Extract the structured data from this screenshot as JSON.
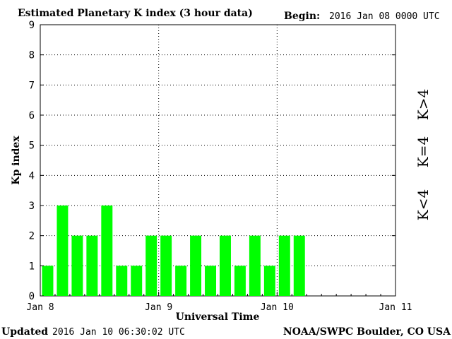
{
  "header": {
    "title": "Estimated Planetary K index (3 hour data)",
    "begin_label": "Begin:",
    "begin_value": "2016 Jan 08 0000 UTC"
  },
  "footer": {
    "updated_label": "Updated",
    "updated_value": "2016 Jan 10 06:30:02 UTC",
    "credit": "NOAA/SWPC Boulder, CO USA"
  },
  "legend": {
    "items": [
      {
        "label": "K<4",
        "color": "#33ff33"
      },
      {
        "label": "K=4",
        "color": "#ffcc00"
      },
      {
        "label": "K>4",
        "color": "#ff3311"
      }
    ]
  },
  "chart_data": {
    "type": "bar",
    "title": "Estimated Planetary K index (3 hour data)",
    "xlabel": "Universal Time",
    "ylabel": "Kp index",
    "ylim": [
      0,
      9
    ],
    "yticks": [
      0,
      1,
      2,
      3,
      4,
      5,
      6,
      7,
      8,
      9
    ],
    "xticks": [
      "Jan 8",
      "Jan 9",
      "Jan 10",
      "Jan 11"
    ],
    "grid": true,
    "interval_hours": 3,
    "slots": 24,
    "values": [
      1,
      3,
      2,
      2,
      3,
      1,
      1,
      2,
      2,
      1,
      2,
      1,
      2,
      1,
      2,
      1,
      2,
      2
    ],
    "bar_color": "#00ff00"
  }
}
